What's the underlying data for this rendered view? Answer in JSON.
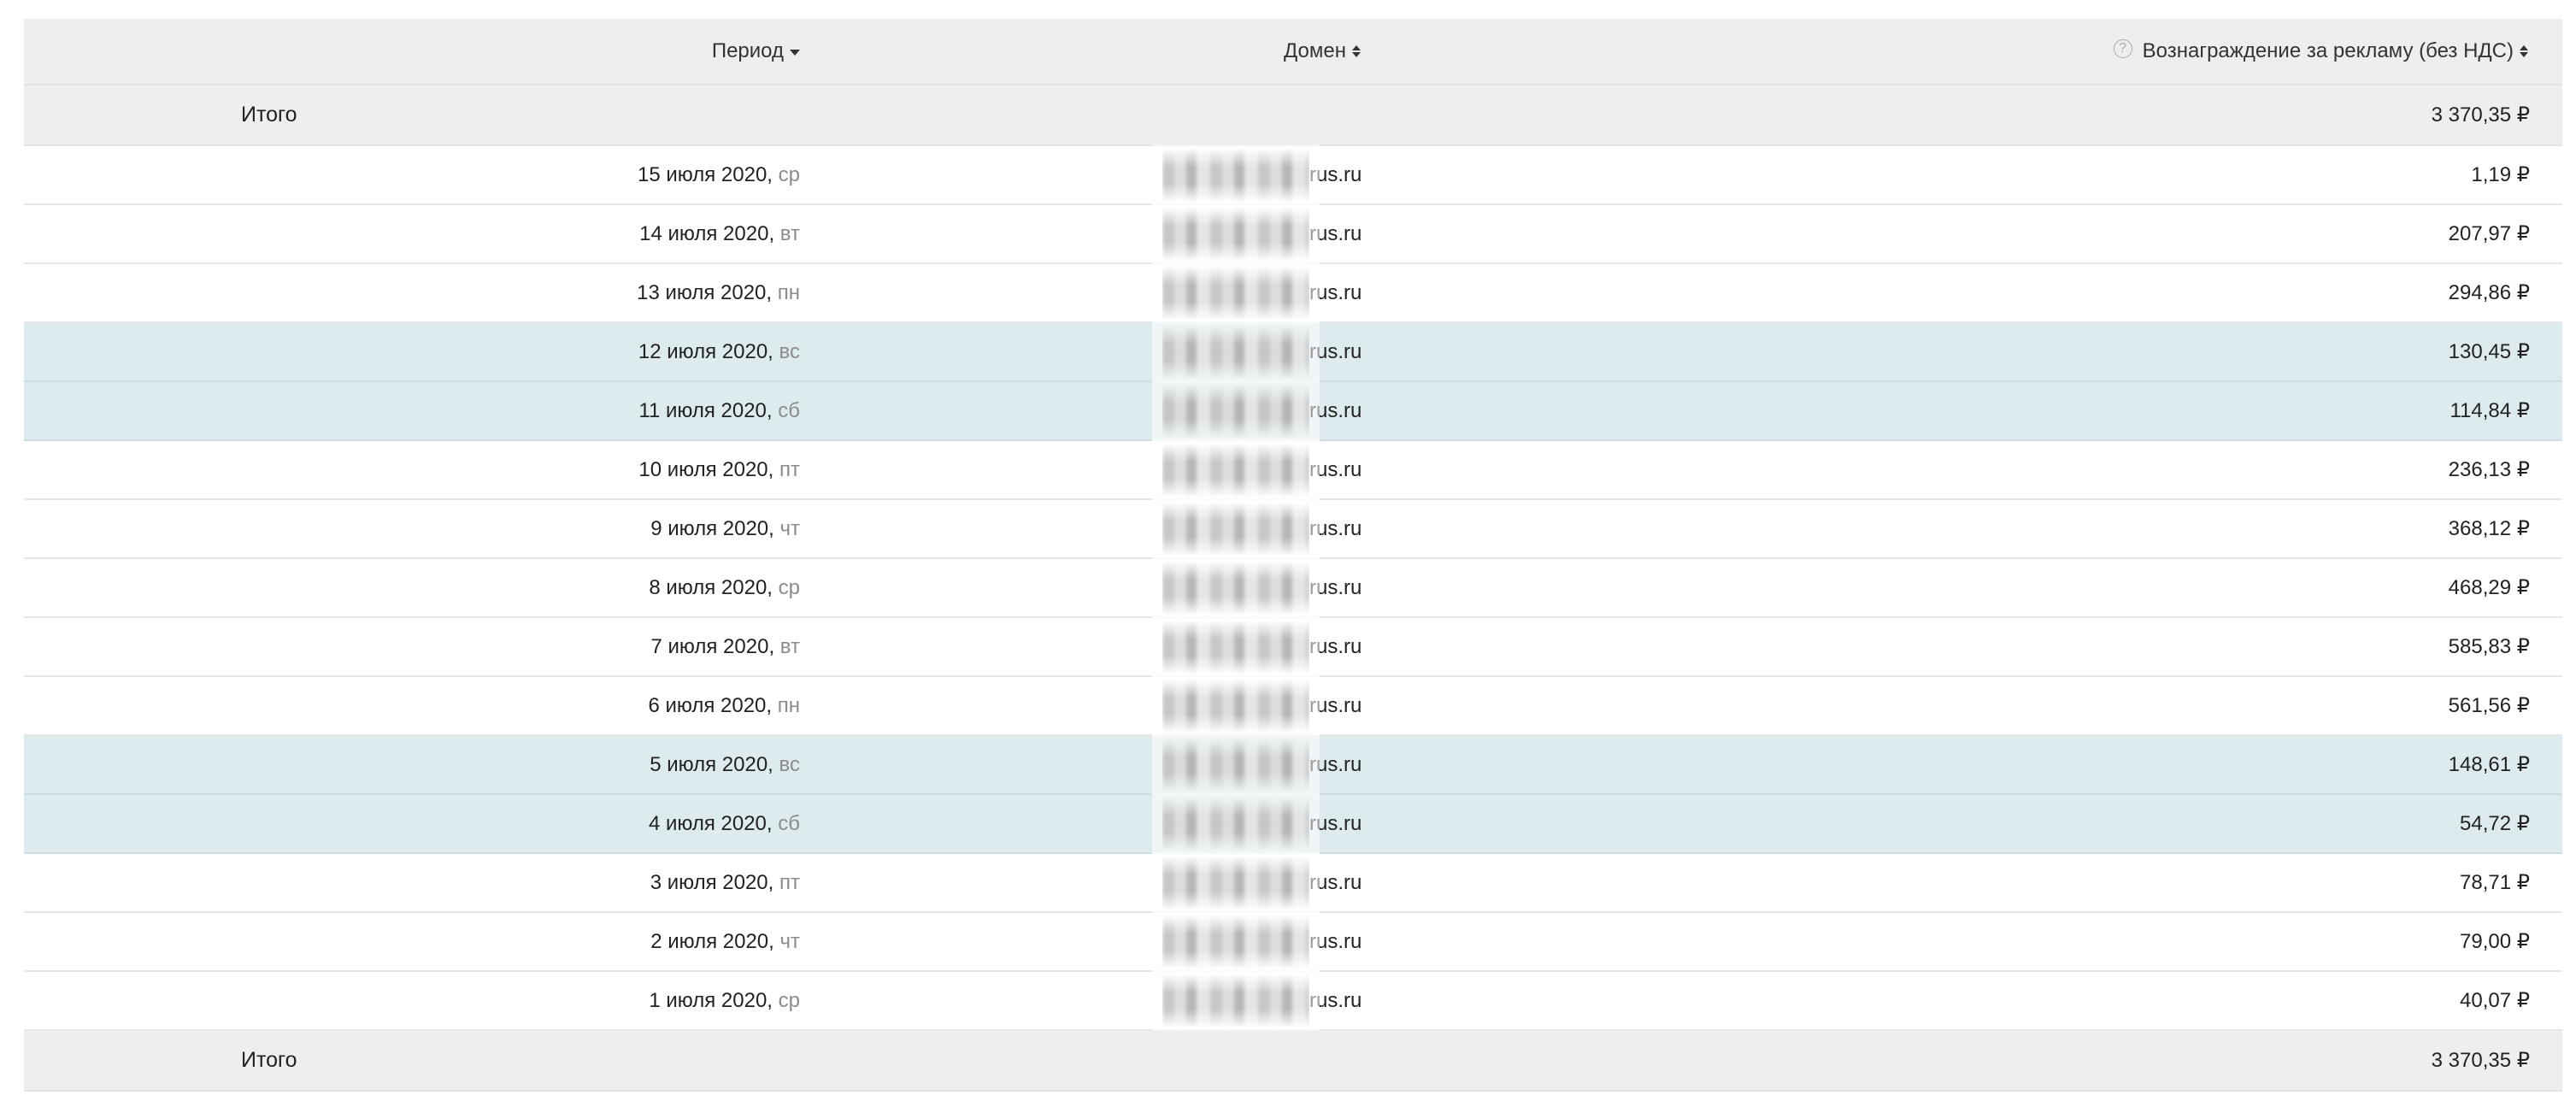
{
  "table": {
    "headers": {
      "period": "Период",
      "domain": "Домен",
      "reward": "Вознаграждение за рекламу (без НДС)"
    },
    "help_icon": "?",
    "total": {
      "label": "Итого",
      "amount": "3 370,35 ₽"
    },
    "rows": [
      {
        "date": "15 июля 2020",
        "weekday": "ср",
        "domain": "rus.ru",
        "amount": "1,19 ₽",
        "weekend": false
      },
      {
        "date": "14 июля 2020",
        "weekday": "вт",
        "domain": "rus.ru",
        "amount": "207,97 ₽",
        "weekend": false
      },
      {
        "date": "13 июля 2020",
        "weekday": "пн",
        "domain": "rus.ru",
        "amount": "294,86 ₽",
        "weekend": false
      },
      {
        "date": "12 июля 2020",
        "weekday": "вс",
        "domain": "rus.ru",
        "amount": "130,45 ₽",
        "weekend": true
      },
      {
        "date": "11 июля 2020",
        "weekday": "сб",
        "domain": "rus.ru",
        "amount": "114,84 ₽",
        "weekend": true
      },
      {
        "date": "10 июля 2020",
        "weekday": "пт",
        "domain": "rus.ru",
        "amount": "236,13 ₽",
        "weekend": false
      },
      {
        "date": "9 июля 2020",
        "weekday": "чт",
        "domain": "rus.ru",
        "amount": "368,12 ₽",
        "weekend": false
      },
      {
        "date": "8 июля 2020",
        "weekday": "ср",
        "domain": "rus.ru",
        "amount": "468,29 ₽",
        "weekend": false
      },
      {
        "date": "7 июля 2020",
        "weekday": "вт",
        "domain": "rus.ru",
        "amount": "585,83 ₽",
        "weekend": false
      },
      {
        "date": "6 июля 2020",
        "weekday": "пн",
        "domain": "rus.ru",
        "amount": "561,56 ₽",
        "weekend": false
      },
      {
        "date": "5 июля 2020",
        "weekday": "вс",
        "domain": "rus.ru",
        "amount": "148,61 ₽",
        "weekend": true
      },
      {
        "date": "4 июля 2020",
        "weekday": "сб",
        "domain": "rus.ru",
        "amount": "54,72 ₽",
        "weekend": true
      },
      {
        "date": "3 июля 2020",
        "weekday": "пт",
        "domain": "rus.ru",
        "amount": "78,71 ₽",
        "weekend": false
      },
      {
        "date": "2 июля 2020",
        "weekday": "чт",
        "domain": "rus.ru",
        "amount": "79,00 ₽",
        "weekend": false
      },
      {
        "date": "1 июля 2020",
        "weekday": "ср",
        "domain": "rus.ru",
        "amount": "40,07 ₽",
        "weekend": false
      }
    ]
  },
  "colors": {
    "header_bg": "#eeeeee",
    "weekend_bg": "#deebee",
    "weekday_text": "#8c8c8c"
  }
}
